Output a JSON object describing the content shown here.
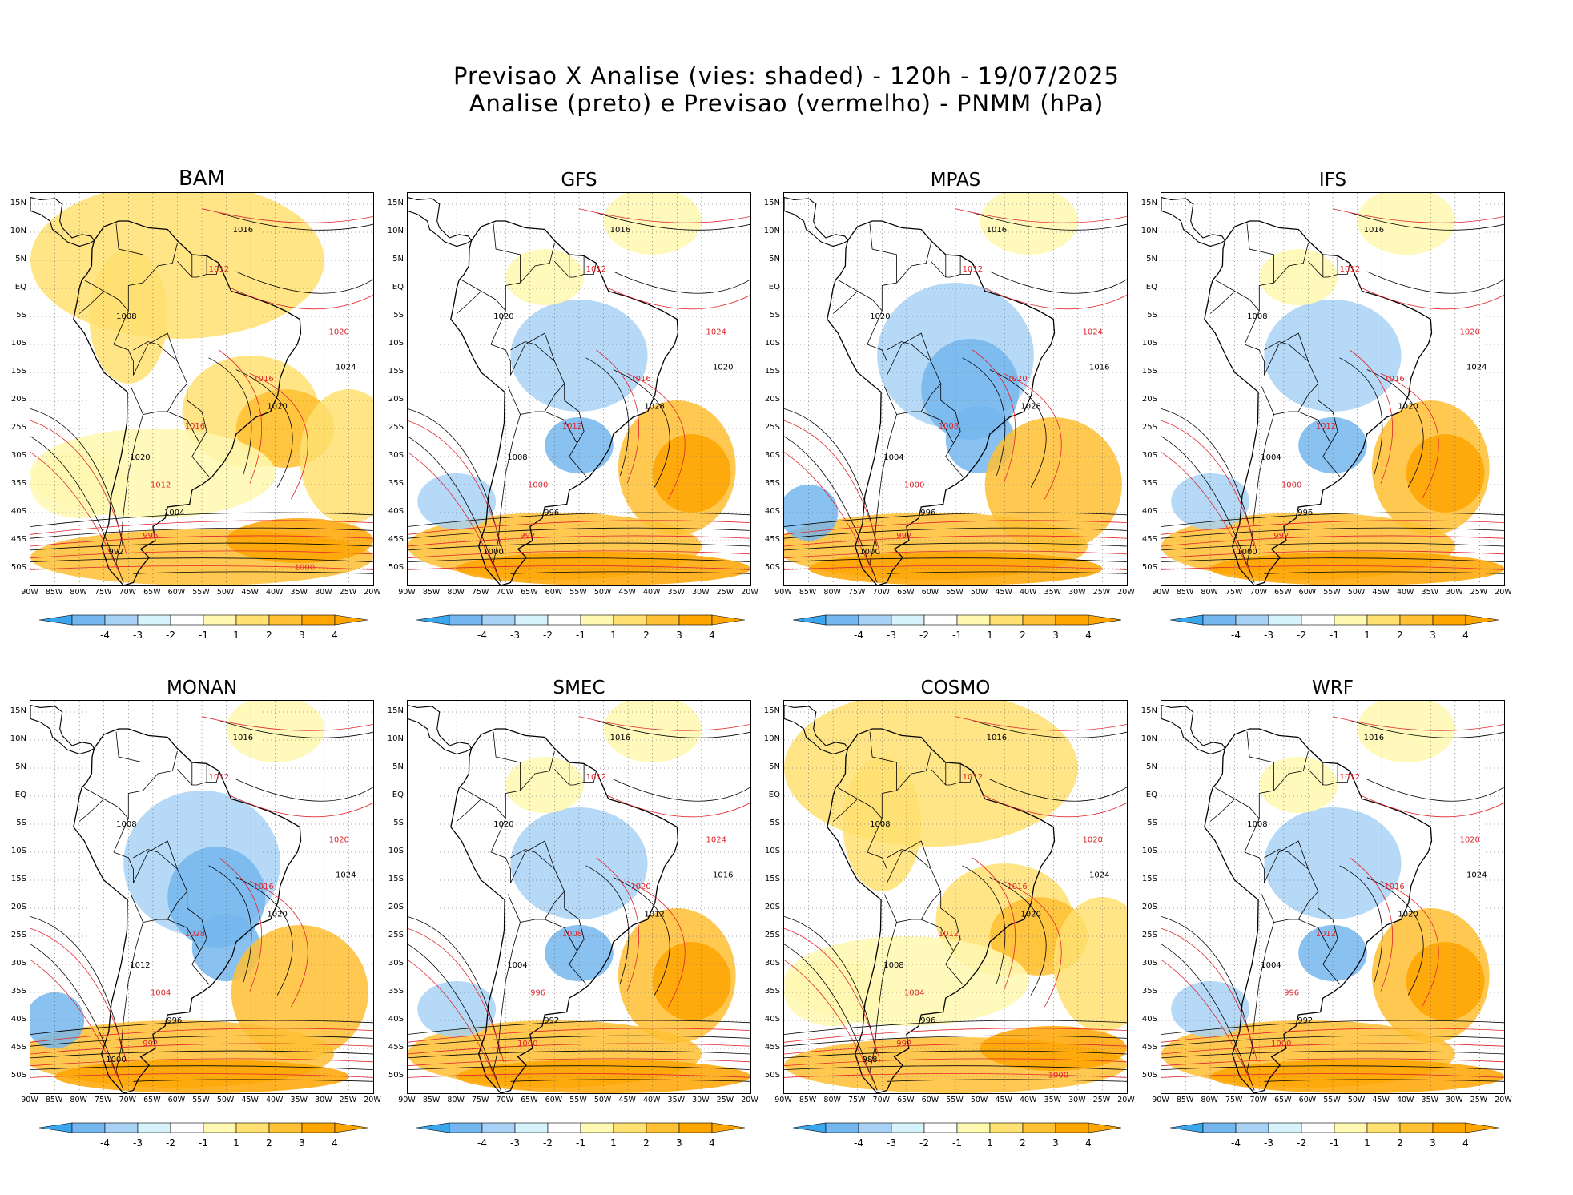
{
  "header": {
    "title_line1": "Previsao X Analise (vies: shaded) - 120h - 19/07/2025",
    "title_line2": "Analise (preto) e Previsao (vermelho) - PNMM (hPa)"
  },
  "axes": {
    "lat_labels": [
      "15N",
      "10N",
      "5N",
      "EQ",
      "5S",
      "10S",
      "15S",
      "20S",
      "25S",
      "30S",
      "35S",
      "40S",
      "45S",
      "50S"
    ],
    "lon_labels": [
      "90W",
      "85W",
      "80W",
      "75W",
      "70W",
      "65W",
      "60W",
      "55W",
      "50W",
      "45W",
      "40W",
      "35W",
      "30W",
      "25W",
      "20W"
    ]
  },
  "colorbar": {
    "labels": [
      "-4",
      "-3",
      "-2",
      "-1",
      "1",
      "2",
      "3",
      "4"
    ],
    "colors": [
      "#3aa6ee",
      "#74b6ef",
      "#a8d2f5",
      "#d6f3fb",
      "#ffffff",
      "#fff8b0",
      "#ffe070",
      "#ffc033",
      "#ffa500"
    ]
  },
  "colors": {
    "analysis_contour": "#000000",
    "forecast_contour": "#e0242c",
    "land_outline": "#000000"
  },
  "panels": [
    {
      "model": "BAM",
      "bias": "warm",
      "isobar_labels": [
        "1016",
        "1012",
        "1008",
        "1020",
        "1024",
        "1016",
        "1020",
        "1016",
        "1020",
        "1012",
        "1004",
        "996",
        "992",
        "1000"
      ]
    },
    {
      "model": "GFS",
      "bias": "mixed",
      "isobar_labels": [
        "1016",
        "1012",
        "1020",
        "1024",
        "1020",
        "1016",
        "1028",
        "1012",
        "1008",
        "1000",
        "996",
        "992",
        "1000"
      ]
    },
    {
      "model": "MPAS",
      "bias": "cold",
      "isobar_labels": [
        "1016",
        "1012",
        "1020",
        "1024",
        "1016",
        "1020",
        "1028",
        "1008",
        "1004",
        "1000",
        "996",
        "992",
        "1000"
      ]
    },
    {
      "model": "IFS",
      "bias": "mixed",
      "isobar_labels": [
        "1016",
        "1012",
        "1008",
        "1020",
        "1024",
        "1016",
        "1020",
        "1012",
        "1004",
        "1000",
        "996",
        "992",
        "1000"
      ]
    },
    {
      "model": "MONAN",
      "bias": "cold",
      "isobar_labels": [
        "1016",
        "1012",
        "1008",
        "1020",
        "1024",
        "1016",
        "1020",
        "1028",
        "1012",
        "1004",
        "996",
        "992",
        "1000"
      ]
    },
    {
      "model": "SMEC",
      "bias": "mixed",
      "isobar_labels": [
        "1016",
        "1012",
        "1020",
        "1024",
        "1016",
        "1020",
        "1012",
        "1008",
        "1004",
        "996",
        "992",
        "1000"
      ]
    },
    {
      "model": "COSMO",
      "bias": "warm",
      "isobar_labels": [
        "1016",
        "1012",
        "1008",
        "1020",
        "1024",
        "1016",
        "1020",
        "1012",
        "1008",
        "1004",
        "996",
        "992",
        "988",
        "1000"
      ]
    },
    {
      "model": "WRF",
      "bias": "mixed",
      "isobar_labels": [
        "1016",
        "1012",
        "1008",
        "1020",
        "1024",
        "1016",
        "1020",
        "1012",
        "1004",
        "996",
        "992",
        "1000"
      ]
    }
  ]
}
